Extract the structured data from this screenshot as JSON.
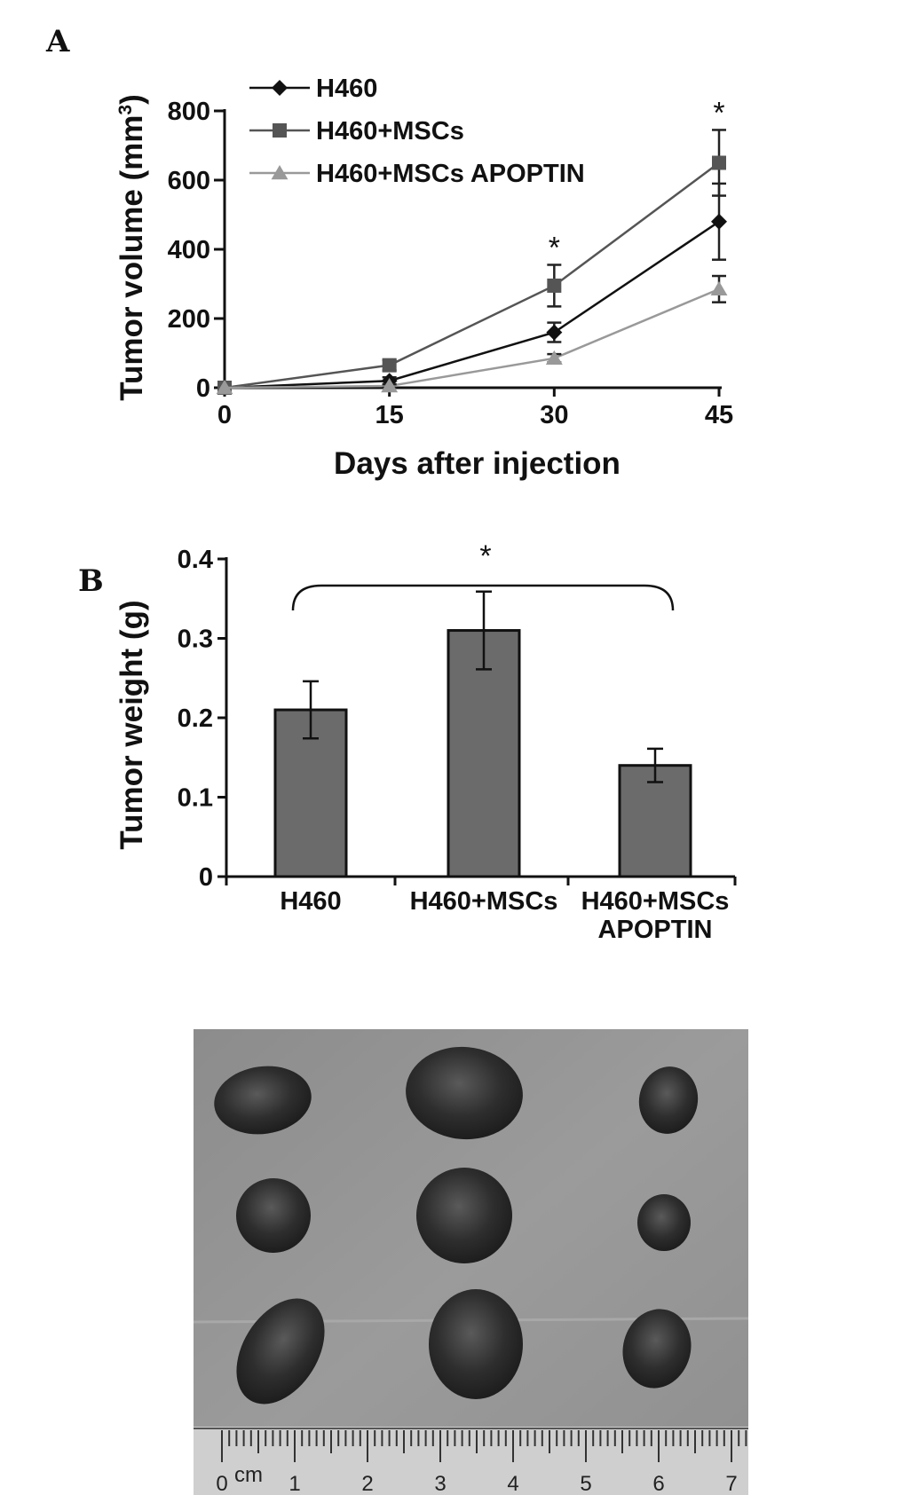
{
  "panel_a_letter": "A",
  "panel_b_letter": "B",
  "chart_data": [
    {
      "type": "line",
      "ylabel": "Tumor volume (mm³)",
      "ylabel_main": "Tumor volume (mm",
      "ylabel_sup": "3",
      "ylabel_end": ")",
      "xlabel": "Days after injection",
      "x": [
        0,
        15,
        30,
        45
      ],
      "x_ticks": [
        "0",
        "15",
        "30",
        "45"
      ],
      "y_ticks": [
        "0",
        "200",
        "400",
        "600",
        "800"
      ],
      "ylim": [
        0,
        800
      ],
      "legend_position": "top-left",
      "series": [
        {
          "name": "H460",
          "marker": "diamond",
          "color": "#111111",
          "values": [
            0,
            20,
            160,
            480
          ],
          "err": [
            0,
            10,
            28,
            110
          ]
        },
        {
          "name": "H460+MSCs",
          "marker": "square",
          "color": "#555555",
          "values": [
            0,
            65,
            295,
            650
          ],
          "err": [
            0,
            15,
            60,
            95
          ]
        },
        {
          "name": "H460+MSCs APOPTIN",
          "marker": "triangle",
          "color": "#999999",
          "values": [
            0,
            5,
            85,
            285
          ],
          "err": [
            0,
            5,
            12,
            38
          ]
        }
      ],
      "annotations": [
        {
          "x": 30,
          "text": "*"
        },
        {
          "x": 45,
          "text": "*"
        }
      ]
    },
    {
      "type": "bar",
      "ylabel": "Tumor weight (g)",
      "categories": [
        "H460",
        "H460+MSCs",
        "H460+MSCs APOPTIN"
      ],
      "category_lines": [
        [
          "H460"
        ],
        [
          "H460+MSCs"
        ],
        [
          "H460+MSCs",
          "APOPTIN"
        ]
      ],
      "values": [
        0.21,
        0.31,
        0.14
      ],
      "err": [
        0.036,
        0.049,
        0.021
      ],
      "y_ticks": [
        "0",
        "0.1",
        "0.2",
        "0.3",
        "0.4"
      ],
      "ylim": [
        0,
        0.4
      ],
      "bar_color": "#6b6b6b",
      "annotations": [
        {
          "text": "*",
          "between": [
            "H460",
            "H460+MSCs APOPTIN"
          ]
        }
      ]
    }
  ],
  "photo": {
    "ruler_unit": "cm",
    "ruler_labels": [
      "0",
      "1",
      "2",
      "3",
      "4",
      "5",
      "6",
      "7"
    ]
  }
}
